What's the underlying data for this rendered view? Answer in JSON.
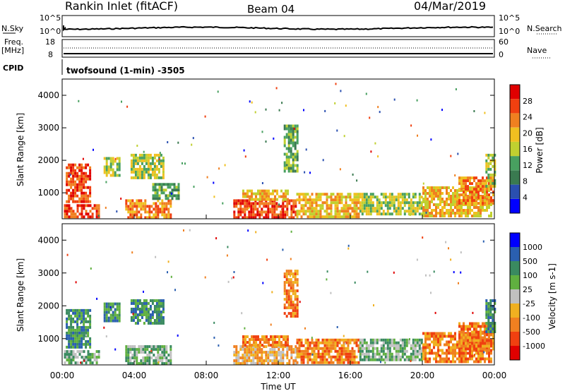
{
  "header": {
    "station": "Rankin Inlet (fitACF)",
    "beam": "Beam 04",
    "date": "04/Mar/2019"
  },
  "panels": {
    "nsky": {
      "label": "N.Sky",
      "tick_top": "10^5",
      "tick_bot": "10^0"
    },
    "nsearch": {
      "label": "N.Search",
      "tick_top": "10^5",
      "tick_bot": "10^0"
    },
    "freq": {
      "label_line1": "Freq.",
      "label_line2": "[MHz]",
      "tick_top": "18",
      "tick_bot": "8"
    },
    "nave": {
      "label": "Nave",
      "tick_top": "60",
      "tick_bot": "0"
    },
    "cpid": {
      "label": "CPID",
      "program": "twofsound (1-min) -3505"
    }
  },
  "colors": {
    "power": [
      "#0000ff",
      "#2a4fb0",
      "#3a7a50",
      "#48a060",
      "#c0d030",
      "#f0c020",
      "#f08020",
      "#f04010",
      "#e00000"
    ],
    "velocity": [
      "#e00000",
      "#f04010",
      "#f08020",
      "#f0b020",
      "#c0c0c0",
      "#60b040",
      "#3a8a60",
      "#2a5fb0",
      "#0000ff"
    ]
  },
  "chart_data": [
    {
      "type": "heatmap",
      "name": "power",
      "ylabel": "Slant Range [km]",
      "colorbar_label": "Power [dB]",
      "colorbar_ticks": [
        "4",
        "8",
        "12",
        "16",
        "20",
        "24",
        "28"
      ],
      "ylim": [
        200,
        4500
      ],
      "yticks": [
        "1000",
        "2000",
        "3000",
        "4000"
      ],
      "xlim_hours": [
        0,
        24
      ],
      "x_tick_labels": [
        "00:00",
        "04:00",
        "08:00",
        "12:00",
        "16:00",
        "20:00",
        "00:00"
      ],
      "regions": [
        {
          "t0": 0.2,
          "t1": 1.6,
          "r0": 700,
          "r1": 1900,
          "level": 7
        },
        {
          "t0": 0.1,
          "t1": 2.0,
          "r0": 250,
          "r1": 650,
          "level": 7
        },
        {
          "t0": 2.3,
          "t1": 3.2,
          "r0": 1500,
          "r1": 2100,
          "level": 4
        },
        {
          "t0": 3.8,
          "t1": 5.6,
          "r0": 1500,
          "r1": 2200,
          "level": 4
        },
        {
          "t0": 3.5,
          "t1": 6.0,
          "r0": 250,
          "r1": 800,
          "level": 6
        },
        {
          "t0": 5.0,
          "t1": 6.5,
          "r0": 800,
          "r1": 1300,
          "level": 3
        },
        {
          "t0": 9.5,
          "t1": 13.0,
          "r0": 250,
          "r1": 800,
          "level": 7
        },
        {
          "t0": 10.0,
          "t1": 12.5,
          "r0": 800,
          "r1": 1100,
          "level": 5
        },
        {
          "t0": 12.3,
          "t1": 13.1,
          "r0": 1700,
          "r1": 3100,
          "level": 3
        },
        {
          "t0": 13.0,
          "t1": 16.5,
          "r0": 300,
          "r1": 1000,
          "level": 5
        },
        {
          "t0": 16.5,
          "t1": 20.0,
          "r0": 350,
          "r1": 1000,
          "level": 4
        },
        {
          "t0": 20.0,
          "t1": 23.8,
          "r0": 300,
          "r1": 1200,
          "level": 5
        },
        {
          "t0": 22.0,
          "t1": 23.9,
          "r0": 700,
          "r1": 1500,
          "level": 6
        },
        {
          "t0": 23.5,
          "t1": 24.0,
          "r0": 1200,
          "r1": 2200,
          "level": 4
        }
      ]
    },
    {
      "type": "heatmap",
      "name": "velocity",
      "ylabel": "Slant Range [km]",
      "colorbar_label": "Velocity [m s-1]",
      "colorbar_ticks": [
        "-1000",
        "-500",
        "-100",
        "-25",
        "25",
        "100",
        "500",
        "1000"
      ],
      "ylim": [
        200,
        4500
      ],
      "yticks": [
        "1000",
        "2000",
        "3000",
        "4000"
      ],
      "xlim_hours": [
        0,
        24
      ],
      "x_tick_labels": [
        "00:00",
        "04:00",
        "08:00",
        "12:00",
        "16:00",
        "20:00",
        "00:00"
      ],
      "xlabel": "Time UT",
      "regions": [
        {
          "t0": 0.2,
          "t1": 1.6,
          "r0": 700,
          "r1": 1900,
          "level": 6
        },
        {
          "t0": 0.1,
          "t1": 2.0,
          "r0": 250,
          "r1": 650,
          "level": 5
        },
        {
          "t0": 2.3,
          "t1": 3.2,
          "r0": 1500,
          "r1": 2100,
          "level": 6
        },
        {
          "t0": 3.8,
          "t1": 5.6,
          "r0": 1500,
          "r1": 2200,
          "level": 6
        },
        {
          "t0": 3.5,
          "t1": 6.0,
          "r0": 250,
          "r1": 800,
          "level": 5
        },
        {
          "t0": 9.5,
          "t1": 13.0,
          "r0": 250,
          "r1": 800,
          "level": 3
        },
        {
          "t0": 10.0,
          "t1": 12.5,
          "r0": 800,
          "r1": 1100,
          "level": 2
        },
        {
          "t0": 12.3,
          "t1": 13.1,
          "r0": 1700,
          "r1": 3100,
          "level": 2
        },
        {
          "t0": 13.0,
          "t1": 16.5,
          "r0": 300,
          "r1": 1000,
          "level": 2
        },
        {
          "t0": 16.5,
          "t1": 20.0,
          "r0": 350,
          "r1": 1000,
          "level": 5
        },
        {
          "t0": 20.0,
          "t1": 23.8,
          "r0": 300,
          "r1": 1200,
          "level": 2
        },
        {
          "t0": 22.0,
          "t1": 23.9,
          "r0": 700,
          "r1": 1500,
          "level": 2
        },
        {
          "t0": 23.5,
          "t1": 24.0,
          "r0": 1200,
          "r1": 2200,
          "level": 6
        }
      ]
    }
  ]
}
